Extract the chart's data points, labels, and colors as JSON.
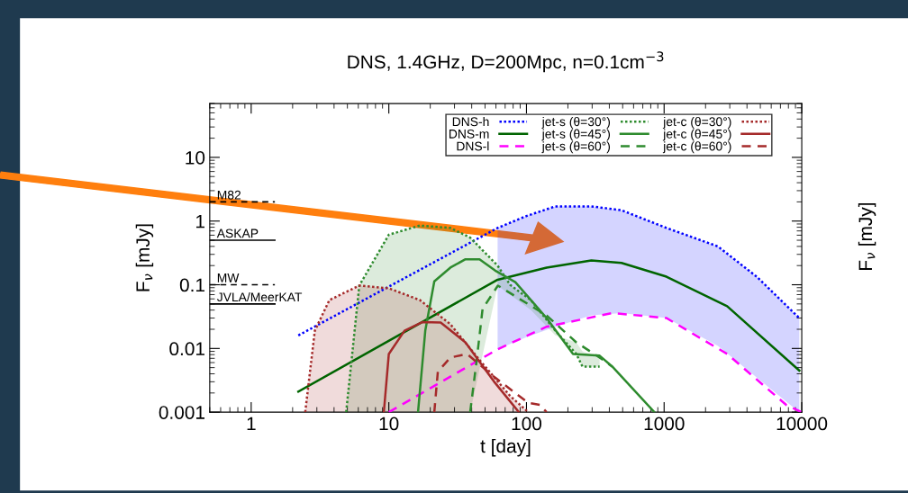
{
  "chart_data": {
    "type": "line",
    "title": "DNS, 1.4GHz, D=200Mpc, n=0.1cm$^{−3}$",
    "xlabel": "t [day]",
    "ylabel": "F$_{ν}$ [mJy]",
    "log": "xy",
    "xlim": [
      0.5,
      10000
    ],
    "ylim": [
      0.001,
      70
    ],
    "xticks": [
      1,
      10,
      100,
      1000,
      10000
    ],
    "yticks": [
      0.001,
      0.01,
      0.1,
      1,
      10
    ],
    "legend": "top right",
    "grid": false,
    "marker": "none",
    "series": [
      {
        "name": "DNS-h",
        "color": "#0000ff",
        "line_style": "dotted",
        "x": [
          2.2,
          61.7,
          100,
          162,
          296,
          490,
          1040,
          2460,
          4700,
          9600
        ],
        "values": [
          0.016,
          0.78,
          1.2,
          1.7,
          1.7,
          1.48,
          0.78,
          0.4,
          0.134,
          0.03
        ],
        "lower": [
          null,
          0.0097,
          0.015,
          0.0219,
          0.033,
          0.036,
          0.03,
          0.011,
          0.0035,
          0.001
        ],
        "upper": [
          null,
          0.78,
          1.2,
          1.7,
          1.7,
          1.48,
          0.78,
          0.4,
          0.134,
          0.03
        ]
      },
      {
        "name": "DNS-m",
        "color": "#006400",
        "line_style": "solid",
        "x": [
          2.2,
          61.7,
          140,
          296,
          490,
          1040,
          2870,
          9600
        ],
        "values": [
          0.0021,
          0.12,
          0.186,
          0.24,
          0.22,
          0.134,
          0.046,
          0.0045
        ]
      },
      {
        "name": "DNS-l",
        "color": "#ff00ff",
        "line_style": "dashed",
        "x": [
          10,
          61.7,
          140,
          420,
          1040,
          2870,
          7700,
          10000
        ],
        "values": [
          0.001,
          0.0097,
          0.0219,
          0.036,
          0.03,
          0.0082,
          0.0013,
          0.001
        ]
      },
      {
        "name": "jet-s (θ=30°)",
        "color": "#2e8b2e",
        "line_style": "dotted",
        "x": [
          4.9,
          6.1,
          10,
          16.8,
          28,
          39,
          61.7,
          76,
          108,
          162,
          230,
          255,
          340
        ],
        "values": [
          0.001,
          0.097,
          0.61,
          0.85,
          0.78,
          0.55,
          0.2,
          0.1,
          0.057,
          0.019,
          0.0082,
          0.0052,
          0.0052
        ],
        "lower": [
          0.001,
          0.001,
          0.001,
          0.001,
          0.001,
          0.001,
          0.097,
          0.07,
          0.04,
          0.016,
          0.0125,
          0.009,
          0.0072
        ],
        "upper": [
          0.001,
          0.097,
          0.61,
          0.85,
          0.78,
          0.55,
          0.2,
          0.1,
          0.057,
          0.019,
          0.0082,
          0.0052,
          0.0052
        ]
      },
      {
        "name": "jet-s (θ=45°)",
        "color": "#2e8b2e",
        "line_style": "solid",
        "x": [
          16.3,
          18.4,
          21.4,
          28,
          35.8,
          45.6,
          59,
          83,
          140,
          218,
          340,
          420,
          850
        ],
        "values": [
          0.001,
          0.019,
          0.113,
          0.186,
          0.25,
          0.25,
          0.168,
          0.11,
          0.03,
          0.0082,
          0.0077,
          0.0052,
          0.001
        ]
      },
      {
        "name": "jet-s (θ=60°)",
        "color": "#2e8b2e",
        "line_style": "dashed",
        "x": [
          39,
          43.5,
          48,
          62,
          140,
          230,
          340,
          420
        ],
        "values": [
          0.001,
          0.0066,
          0.042,
          0.097,
          0.033,
          0.0125,
          0.0072,
          0.0052
        ]
      },
      {
        "name": "jet-c (θ=30°)",
        "color": "#a52a2a",
        "line_style": "dotted",
        "x": [
          2.47,
          2.9,
          3.7,
          6.1,
          10,
          16.8,
          28,
          45.6,
          76,
          103
        ],
        "values": [
          0.001,
          0.019,
          0.0575,
          0.097,
          0.088,
          0.0575,
          0.024,
          0.0066,
          0.0018,
          0.001
        ],
        "lower": [
          0.001,
          0.001,
          0.001,
          0.001,
          0.001,
          0.001,
          0.001,
          0.001,
          0.001,
          0.001
        ],
        "upper": [
          0.001,
          0.019,
          0.0575,
          0.097,
          0.088,
          0.0575,
          0.024,
          0.0066,
          0.0018,
          0.001
        ]
      },
      {
        "name": "jet-c (θ=45°)",
        "color": "#a52a2a",
        "line_style": "solid",
        "x": [
          9.2,
          10,
          13,
          17.6,
          23.8,
          36,
          59,
          88
        ],
        "values": [
          0.001,
          0.0082,
          0.019,
          0.026,
          0.0255,
          0.0125,
          0.0029,
          0.001
        ]
      },
      {
        "name": "jet-c (θ=60°)",
        "color": "#a52a2a",
        "line_style": "dashed",
        "x": [
          21.4,
          22.7,
          28,
          37,
          59,
          103,
          125,
          140
        ],
        "values": [
          0.001,
          0.0043,
          0.0072,
          0.0082,
          0.0035,
          0.0014,
          0.0013,
          0.001
        ]
      }
    ],
    "ref_lines": [
      {
        "axis": "y",
        "value": 2,
        "label": "M82",
        "line_style": "dashed",
        "color": "#000000"
      },
      {
        "axis": "y",
        "value": 0.5,
        "label": "ASKAP",
        "line_style": "solid",
        "color": "#000000"
      },
      {
        "axis": "y",
        "value": 0.1,
        "label": "MW",
        "line_style": "dashed",
        "color": "#000000"
      },
      {
        "axis": "y",
        "value": 0.05,
        "label": "JVLA/MeerKAT",
        "line_style": "solid",
        "color": "#000000"
      }
    ],
    "annotations": [
      "F$_{ν}$ [mJy]"
    ]
  }
}
